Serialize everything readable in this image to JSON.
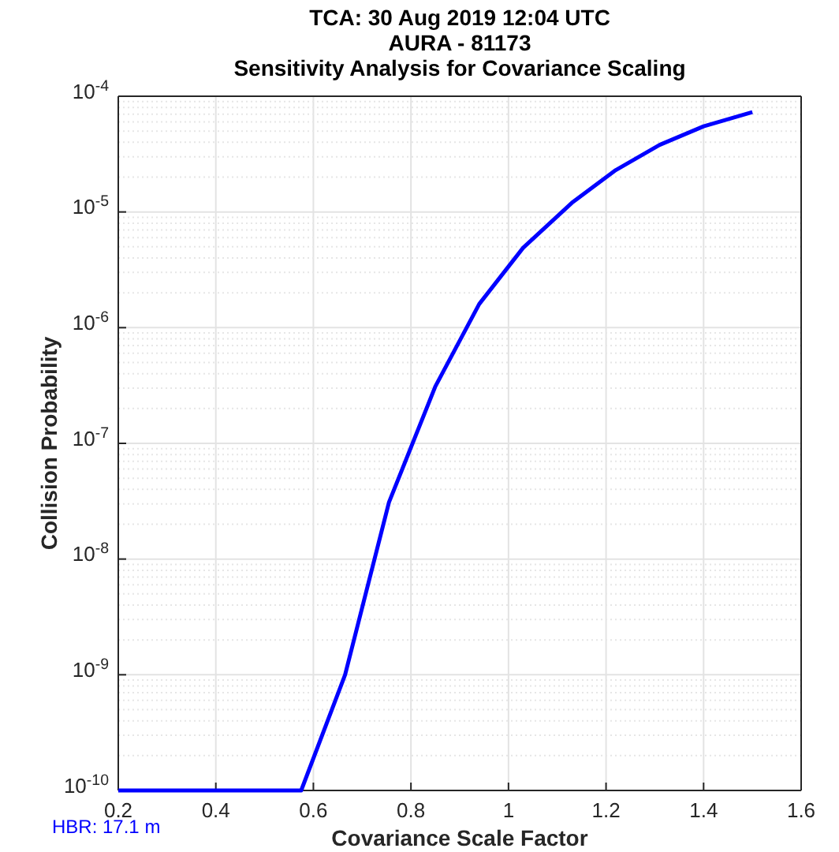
{
  "chart_data": {
    "type": "line",
    "title": "TCA: 30 Aug 2019 12:04 UTC\nAURA - 81173\nSensitivity Analysis for Covariance Scaling",
    "xlabel": "Covariance Scale Factor",
    "ylabel": "Collision Probability",
    "annotations": [
      "HBR: 17.1 m"
    ],
    "x": [
      0.2,
      0.575,
      0.665,
      0.755,
      0.85,
      0.94,
      1.03,
      1.13,
      1.22,
      1.31,
      1.4,
      1.5
    ],
    "series": [
      {
        "color": "#0000ff",
        "values": [
          1e-10,
          1e-10,
          1e-09,
          3.1e-08,
          3.1e-07,
          1.6e-06,
          4.9e-06,
          1.2e-05,
          2.3e-05,
          3.8e-05,
          5.5e-05,
          7.3e-05
        ]
      }
    ],
    "log": "y",
    "grid": true,
    "marker": "none",
    "line_style": "solid",
    "xlim": [
      0.2,
      1.6
    ],
    "xticks": [
      0.2,
      0.4,
      0.6,
      0.8,
      1,
      1.2,
      1.4,
      1.6
    ],
    "ylim": [
      1e-10,
      0.0001
    ],
    "yticks": [
      {
        "value": 1e-10,
        "label": "10$^{-10}$"
      },
      {
        "value": 1e-09,
        "label": "10$^{-9}$"
      },
      {
        "value": 1e-08,
        "label": "10$^{-8}$"
      },
      {
        "value": 1e-07,
        "label": "10$^{-7}$"
      },
      {
        "value": 1e-06,
        "label": "10$^{-6}$"
      },
      {
        "value": 1e-05,
        "label": "10$^{-5}$"
      },
      {
        "value": 0.0001,
        "label": "10$^{-4}$"
      }
    ]
  }
}
